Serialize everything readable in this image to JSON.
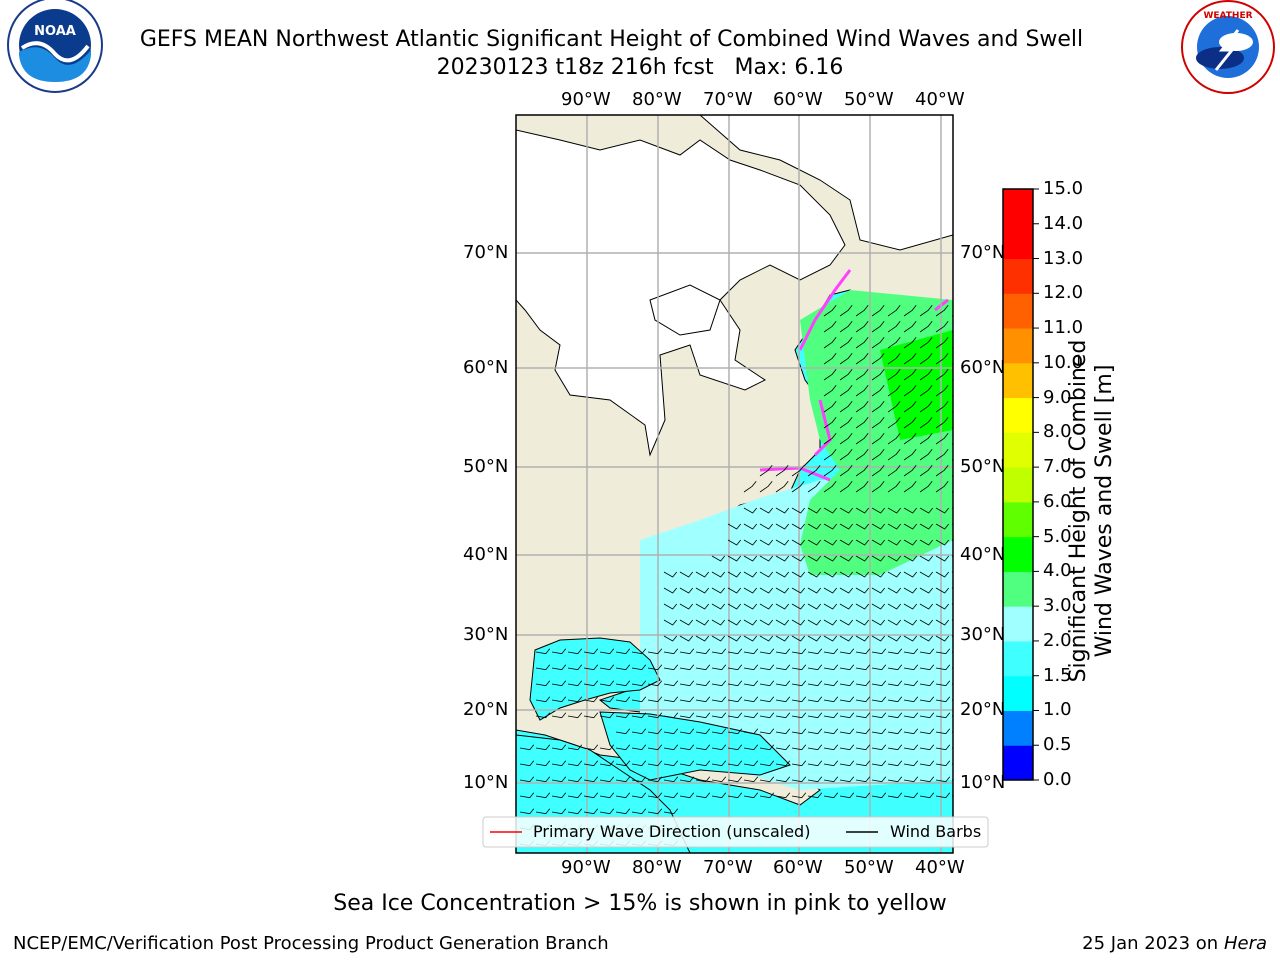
{
  "header": {
    "title": "GEFS MEAN Northwest Atlantic Significant Height of Combined Wind Waves and Swell",
    "subtitle": "20230123 t18z 216h fcst   Max: 6.16"
  },
  "logos": {
    "left": "NOAA",
    "right": "NATIONAL WEATHER SERVICE"
  },
  "map": {
    "lon_labels": [
      "90°W",
      "80°W",
      "70°W",
      "60°W",
      "50°W",
      "40°W"
    ],
    "lat_labels": [
      "70°N",
      "60°N",
      "50°N",
      "40°N",
      "30°N",
      "20°N",
      "10°N"
    ],
    "legend": {
      "wave_direction": "Primary Wave Direction (unscaled)",
      "wind_barbs": "Wind Barbs"
    }
  },
  "colorbar": {
    "title_line1": "Significant Height of Combined",
    "title_line2": "Wind Waves and Swell [m]",
    "ticks": [
      "0.0",
      "0.5",
      "1.0",
      "1.5",
      "2.0",
      "3.0",
      "4.0",
      "5.0",
      "6.0",
      "7.0",
      "8.0",
      "9.0",
      "10.0",
      "11.0",
      "12.0",
      "13.0",
      "14.0",
      "15.0"
    ],
    "colors": [
      "#0000ff",
      "#0080ff",
      "#00ffff",
      "#40ffff",
      "#a0ffff",
      "#50ff80",
      "#00ff00",
      "#60ff00",
      "#c0ff00",
      "#e0ff00",
      "#ffff00",
      "#ffc000",
      "#ff9000",
      "#ff6000",
      "#ff3000",
      "#ff0000",
      "#ff0000"
    ]
  },
  "note": "Sea Ice Concentration > 15% is shown in pink to yellow",
  "footer": {
    "left": "NCEP/EMC/Verification Post Processing Product Generation Branch",
    "date": "25 Jan 2023 on",
    "host": "Hera"
  },
  "colors": {
    "land": "#efedda",
    "ice_free_land": "#ffffff",
    "grid": "#b0b0b0",
    "wave_arrow": "#ff0000",
    "barb": "#000000"
  }
}
